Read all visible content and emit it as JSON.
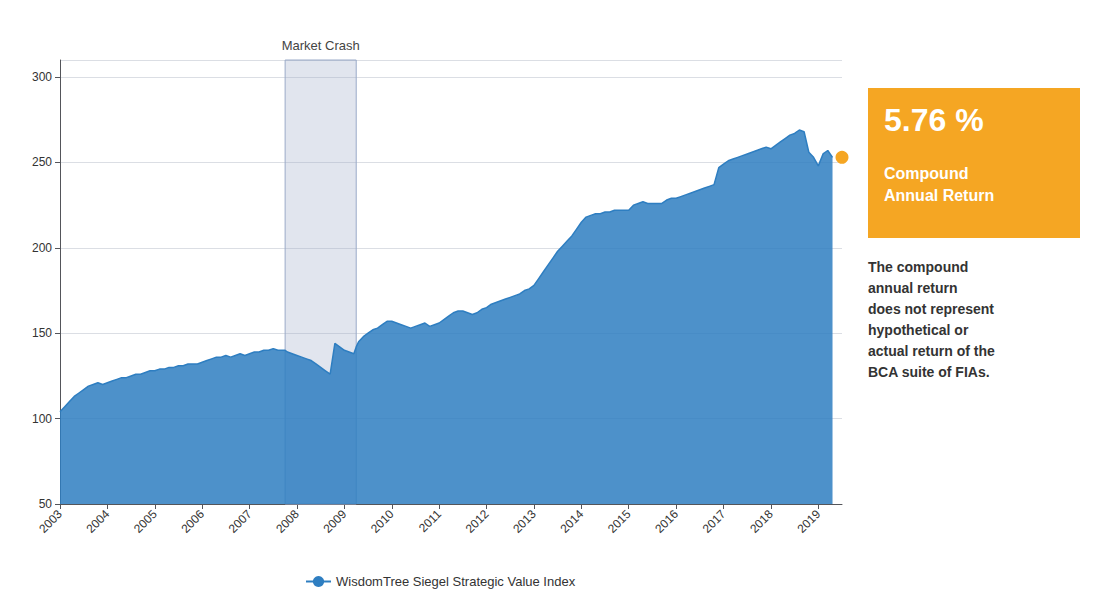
{
  "chart_data": {
    "type": "area",
    "x": [
      2003.0,
      2003.1,
      2003.2,
      2003.3,
      2003.4,
      2003.5,
      2003.6,
      2003.7,
      2003.8,
      2003.9,
      2004.0,
      2004.1,
      2004.2,
      2004.3,
      2004.4,
      2004.5,
      2004.6,
      2004.7,
      2004.8,
      2004.9,
      2005.0,
      2005.1,
      2005.2,
      2005.3,
      2005.4,
      2005.5,
      2005.6,
      2005.7,
      2005.8,
      2005.9,
      2006.0,
      2006.1,
      2006.2,
      2006.3,
      2006.4,
      2006.5,
      2006.6,
      2006.7,
      2006.8,
      2006.9,
      2007.0,
      2007.1,
      2007.2,
      2007.3,
      2007.4,
      2007.5,
      2007.6,
      2007.7,
      2007.75,
      2007.8,
      2007.9,
      2008.0,
      2008.1,
      2008.2,
      2008.3,
      2008.4,
      2008.5,
      2008.6,
      2008.7,
      2008.8,
      2008.9,
      2009.0,
      2009.1,
      2009.2,
      2009.25,
      2009.3,
      2009.4,
      2009.5,
      2009.6,
      2009.7,
      2009.8,
      2009.9,
      2010.0,
      2010.1,
      2010.2,
      2010.3,
      2010.4,
      2010.5,
      2010.6,
      2010.7,
      2010.8,
      2010.9,
      2011.0,
      2011.1,
      2011.2,
      2011.3,
      2011.4,
      2011.5,
      2011.6,
      2011.7,
      2011.8,
      2011.9,
      2012.0,
      2012.1,
      2012.2,
      2012.3,
      2012.4,
      2012.5,
      2012.6,
      2012.7,
      2012.8,
      2012.9,
      2013.0,
      2013.1,
      2013.2,
      2013.3,
      2013.4,
      2013.5,
      2013.6,
      2013.7,
      2013.8,
      2013.9,
      2014.0,
      2014.1,
      2014.2,
      2014.3,
      2014.4,
      2014.5,
      2014.6,
      2014.7,
      2014.8,
      2014.9,
      2015.0,
      2015.1,
      2015.2,
      2015.3,
      2015.4,
      2015.5,
      2015.6,
      2015.7,
      2015.8,
      2015.9,
      2016.0,
      2016.1,
      2016.2,
      2016.3,
      2016.4,
      2016.5,
      2016.6,
      2016.7,
      2016.8,
      2016.9,
      2017.0,
      2017.1,
      2017.2,
      2017.3,
      2017.4,
      2017.5,
      2017.6,
      2017.7,
      2017.8,
      2017.9,
      2018.0,
      2018.1,
      2018.2,
      2018.3,
      2018.4,
      2018.5,
      2018.6,
      2018.7,
      2018.8,
      2018.9,
      2019.0,
      2019.1,
      2019.2,
      2019.3
    ],
    "series": [
      {
        "name": "WisdomTree Siegel Strategic Value Index",
        "color": "#2E7EC1",
        "values": [
          104,
          107,
          110,
          113,
          115,
          117,
          119,
          120,
          121,
          120,
          121,
          122,
          123,
          124,
          124,
          125,
          126,
          126,
          127,
          128,
          128,
          129,
          129,
          130,
          130,
          131,
          131,
          132,
          132,
          132,
          133,
          134,
          135,
          136,
          136,
          137,
          136,
          137,
          138,
          137,
          138,
          139,
          139,
          140,
          140,
          141,
          140,
          140,
          140,
          139,
          138,
          137,
          136,
          135,
          134,
          132,
          130,
          128,
          126,
          144,
          142,
          140,
          139,
          138,
          142,
          145,
          148,
          150,
          152,
          153,
          155,
          157,
          157,
          156,
          155,
          154,
          153,
          154,
          155,
          156,
          154,
          155,
          156,
          158,
          160,
          162,
          163,
          163,
          162,
          161,
          162,
          164,
          165,
          167,
          168,
          169,
          170,
          171,
          172,
          173,
          175,
          176,
          178,
          182,
          186,
          190,
          194,
          198,
          201,
          204,
          207,
          211,
          215,
          218,
          219,
          220,
          220,
          221,
          221,
          222,
          222,
          222,
          222,
          225,
          226,
          227,
          226,
          226,
          226,
          226,
          228,
          229,
          229,
          230,
          231,
          232,
          233,
          234,
          235,
          236,
          237,
          247,
          249,
          251,
          252,
          253,
          254,
          255,
          256,
          257,
          258,
          259,
          258,
          260,
          262,
          264,
          266,
          267,
          269,
          268,
          256,
          253,
          248,
          255,
          257,
          253
        ]
      }
    ],
    "xlim": [
      2003.0,
      2019.5
    ],
    "xticks": [
      2003,
      2004,
      2005,
      2006,
      2007,
      2008,
      2009,
      2010,
      2011,
      2012,
      2013,
      2014,
      2015,
      2016,
      2017,
      2018,
      2019
    ],
    "ylim": [
      50,
      310
    ],
    "yticks": [
      50,
      100,
      150,
      200,
      250,
      300
    ],
    "grid": true,
    "legend": "bottom",
    "annotations": [
      {
        "text": "Market Crash",
        "x_start": 2007.75,
        "x_end": 2009.25
      },
      {
        "text": "5.76 %",
        "subtext": "Compound\nAnnual Return",
        "color": "#F5A623",
        "x": 2019.5,
        "y": 253
      },
      {
        "text": "The compound\nannual return\ndoes not represent\nhypothetical or\nactual return of the\nBCA suite of FIAs."
      }
    ]
  }
}
